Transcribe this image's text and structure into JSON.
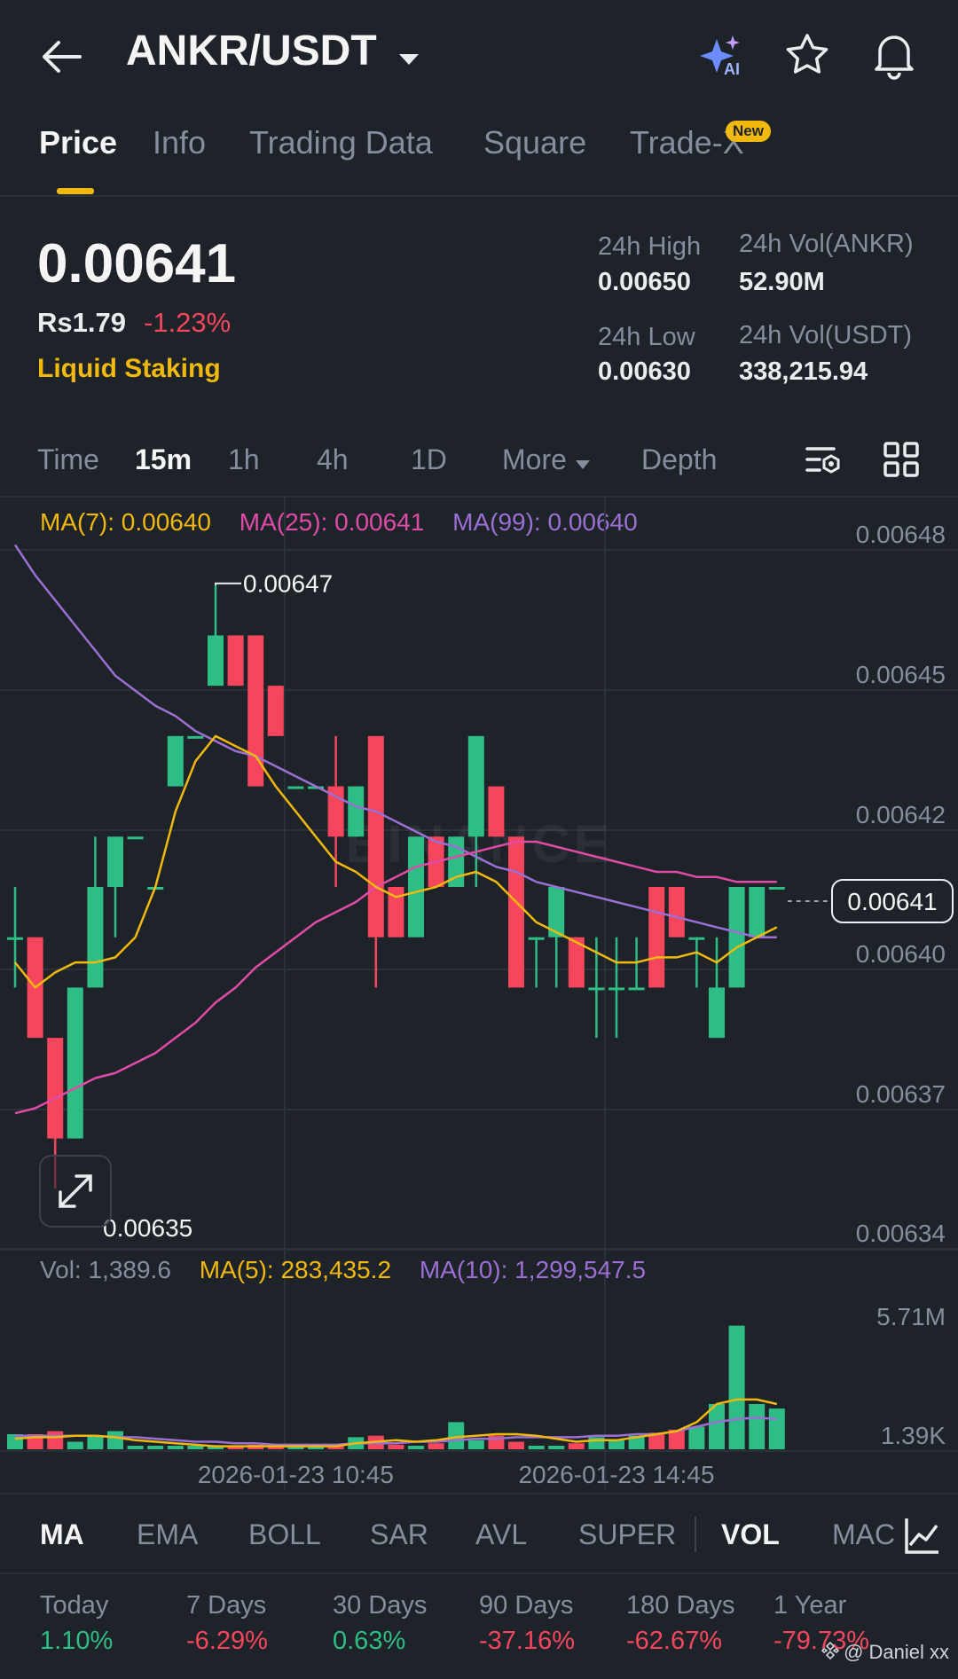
{
  "header": {
    "title": "ANKR/USDT",
    "ai_label": "AI"
  },
  "tabs": [
    {
      "label": "Price"
    },
    {
      "label": "Info"
    },
    {
      "label": "Trading Data"
    },
    {
      "label": "Square"
    },
    {
      "label": "Trade-X"
    }
  ],
  "new_badge": "New",
  "ticker": {
    "price": "0.00641",
    "local_price": "Rs1.79",
    "change": "-1.23%",
    "tag": "Liquid Staking",
    "high_label": "24h High",
    "high": "0.00650",
    "low_label": "24h Low",
    "low": "0.00630",
    "vol_base_label": "24h Vol(ANKR)",
    "vol_base": "52.90M",
    "vol_quote_label": "24h Vol(USDT)",
    "vol_quote": "338,215.94"
  },
  "timebar": {
    "time": "Time",
    "m15": "15m",
    "h1": "1h",
    "h4": "4h",
    "d1": "1D",
    "more": "More",
    "depth": "Depth"
  },
  "ma_legend": {
    "ma7": "MA(7): 0.00640",
    "ma25": "MA(25): 0.00641",
    "ma99": "MA(99): 0.00640"
  },
  "vol_legend": {
    "vol": "Vol: 1,389.6",
    "ma5": "MA(5): 283,435.2",
    "ma10": "MA(10): 1,299,547.5"
  },
  "price_axis": [
    "0.00648",
    "0.00645",
    "0.00642",
    "0.00640",
    "0.00637",
    "0.00634"
  ],
  "vol_axis": [
    "5.71M",
    "1.39K"
  ],
  "current_price_tag": "0.00641",
  "high_marker": "0.00647",
  "low_marker": "0.00635",
  "time_labels": [
    "2026-01-23 10:45",
    "2026-01-23 14:45"
  ],
  "watermark": "BINANCE",
  "indicators": [
    "MA",
    "EMA",
    "BOLL",
    "SAR",
    "AVL",
    "SUPER",
    "VOL",
    "MAC"
  ],
  "performance": [
    {
      "label": "Today",
      "value": "1.10%"
    },
    {
      "label": "7 Days",
      "value": "-6.29%"
    },
    {
      "label": "30 Days",
      "value": "0.63%"
    },
    {
      "label": "90 Days",
      "value": "-37.16%"
    },
    {
      "label": "180 Days",
      "value": "-62.67%"
    },
    {
      "label": "1 Year",
      "value": "-79.73%"
    }
  ],
  "credit": "@ Daniel xx",
  "colors": {
    "up": "#2ebd85",
    "down": "#f6465d",
    "ma7": "#f0b90b",
    "ma25": "#e04ba8",
    "ma99": "#9b6fd4",
    "accent": "#f0b90b"
  },
  "chart_data": {
    "type": "candlestick",
    "interval": "15m",
    "ylim": [
      0.00634,
      0.00648
    ],
    "candles": [
      {
        "o": 0.0064,
        "h": 0.00641,
        "l": 0.00639,
        "c": 0.0064
      },
      {
        "o": 0.0064,
        "h": 0.0064,
        "l": 0.00638,
        "c": 0.00638
      },
      {
        "o": 0.00638,
        "h": 0.00638,
        "l": 0.00635,
        "c": 0.00636
      },
      {
        "o": 0.00636,
        "h": 0.00639,
        "l": 0.00636,
        "c": 0.00639
      },
      {
        "o": 0.00639,
        "h": 0.00642,
        "l": 0.00639,
        "c": 0.00641
      },
      {
        "o": 0.00641,
        "h": 0.00642,
        "l": 0.0064,
        "c": 0.00642
      },
      {
        "o": 0.00642,
        "h": 0.00642,
        "l": 0.00642,
        "c": 0.00642
      },
      {
        "o": 0.00641,
        "h": 0.00641,
        "l": 0.00641,
        "c": 0.00641
      },
      {
        "o": 0.00643,
        "h": 0.00644,
        "l": 0.00643,
        "c": 0.00644
      },
      {
        "o": 0.00644,
        "h": 0.00644,
        "l": 0.00644,
        "c": 0.00644
      },
      {
        "o": 0.00645,
        "h": 0.00647,
        "l": 0.00645,
        "c": 0.00646
      },
      {
        "o": 0.00646,
        "h": 0.00646,
        "l": 0.00645,
        "c": 0.00645
      },
      {
        "o": 0.00646,
        "h": 0.00646,
        "l": 0.00643,
        "c": 0.00643
      },
      {
        "o": 0.00645,
        "h": 0.00645,
        "l": 0.00644,
        "c": 0.00644
      },
      {
        "o": 0.00643,
        "h": 0.00643,
        "l": 0.00643,
        "c": 0.00643
      },
      {
        "o": 0.00643,
        "h": 0.00643,
        "l": 0.00643,
        "c": 0.00643
      },
      {
        "o": 0.00643,
        "h": 0.00644,
        "l": 0.00641,
        "c": 0.00642
      },
      {
        "o": 0.00642,
        "h": 0.00643,
        "l": 0.00642,
        "c": 0.00643
      },
      {
        "o": 0.00644,
        "h": 0.00644,
        "l": 0.00639,
        "c": 0.0064
      },
      {
        "o": 0.00641,
        "h": 0.00641,
        "l": 0.0064,
        "c": 0.0064
      },
      {
        "o": 0.0064,
        "h": 0.00642,
        "l": 0.0064,
        "c": 0.00642
      },
      {
        "o": 0.00642,
        "h": 0.00642,
        "l": 0.00641,
        "c": 0.00641
      },
      {
        "o": 0.00641,
        "h": 0.00642,
        "l": 0.00641,
        "c": 0.00642
      },
      {
        "o": 0.00642,
        "h": 0.00644,
        "l": 0.00641,
        "c": 0.00644
      },
      {
        "o": 0.00643,
        "h": 0.00643,
        "l": 0.00642,
        "c": 0.00642
      },
      {
        "o": 0.00642,
        "h": 0.00642,
        "l": 0.00639,
        "c": 0.00639
      },
      {
        "o": 0.0064,
        "h": 0.0064,
        "l": 0.00639,
        "c": 0.0064
      },
      {
        "o": 0.0064,
        "h": 0.00641,
        "l": 0.00639,
        "c": 0.00641
      },
      {
        "o": 0.0064,
        "h": 0.0064,
        "l": 0.00639,
        "c": 0.00639
      },
      {
        "o": 0.00639,
        "h": 0.0064,
        "l": 0.00638,
        "c": 0.00639
      },
      {
        "o": 0.00639,
        "h": 0.0064,
        "l": 0.00638,
        "c": 0.00639
      },
      {
        "o": 0.00639,
        "h": 0.0064,
        "l": 0.00639,
        "c": 0.00639
      },
      {
        "o": 0.00641,
        "h": 0.00641,
        "l": 0.00639,
        "c": 0.00639
      },
      {
        "o": 0.00641,
        "h": 0.00641,
        "l": 0.0064,
        "c": 0.0064
      },
      {
        "o": 0.0064,
        "h": 0.0064,
        "l": 0.00639,
        "c": 0.0064
      },
      {
        "o": 0.00638,
        "h": 0.0064,
        "l": 0.00638,
        "c": 0.00639
      },
      {
        "o": 0.00639,
        "h": 0.00641,
        "l": 0.00639,
        "c": 0.00641
      },
      {
        "o": 0.0064,
        "h": 0.00641,
        "l": 0.0064,
        "c": 0.00641
      },
      {
        "o": 0.00641,
        "h": 0.00641,
        "l": 0.00641,
        "c": 0.00641
      }
    ],
    "ma7": [
      0.006395,
      0.00639,
      0.006393,
      0.006395,
      0.006395,
      0.006396,
      0.0064,
      0.00641,
      0.006425,
      0.006435,
      0.00644,
      0.006438,
      0.006436,
      0.00643,
      0.006425,
      0.00642,
      0.006415,
      0.006413,
      0.00641,
      0.006408,
      0.006409,
      0.00641,
      0.006412,
      0.006413,
      0.006411,
      0.006407,
      0.006403,
      0.006401,
      0.006399,
      0.006397,
      0.006395,
      0.006395,
      0.006396,
      0.006396,
      0.006397,
      0.006395,
      0.006398,
      0.0064,
      0.006402
    ],
    "ma25": [
      0.006365,
      0.006366,
      0.006368,
      0.00637,
      0.006372,
      0.006373,
      0.006375,
      0.006377,
      0.00638,
      0.006383,
      0.006387,
      0.00639,
      0.006394,
      0.006397,
      0.0064,
      0.006403,
      0.006405,
      0.006407,
      0.00641,
      0.006412,
      0.006414,
      0.006415,
      0.006416,
      0.006417,
      0.006418,
      0.006419,
      0.006419,
      0.006418,
      0.006417,
      0.006416,
      0.006415,
      0.006414,
      0.006413,
      0.006413,
      0.006412,
      0.006412,
      0.006411,
      0.006411,
      0.006411
    ],
    "ma99": [
      0.006478,
      0.006472,
      0.006467,
      0.006462,
      0.006457,
      0.006452,
      0.006449,
      0.006446,
      0.006444,
      0.006441,
      0.006439,
      0.006437,
      0.006436,
      0.006434,
      0.006432,
      0.00643,
      0.006428,
      0.006426,
      0.006425,
      0.006423,
      0.006421,
      0.006419,
      0.006418,
      0.006416,
      0.006414,
      0.006413,
      0.006411,
      0.00641,
      0.006409,
      0.006408,
      0.006407,
      0.006406,
      0.006405,
      0.006404,
      0.006403,
      0.006402,
      0.006401,
      0.0064,
      0.0064
    ],
    "volume": [
      0.1,
      0.1,
      0.12,
      0.05,
      0.09,
      0.12,
      0.01,
      0.02,
      0.01,
      0.01,
      0.02,
      0.02,
      0.03,
      0.03,
      0.02,
      0.01,
      0.01,
      0.08,
      0.09,
      0.03,
      0.02,
      0.04,
      0.18,
      0.06,
      0.09,
      0.05,
      0.02,
      0.02,
      0.04,
      0.08,
      0.06,
      0.09,
      0.11,
      0.13,
      0.15,
      0.3,
      0.82,
      0.3,
      0.27
    ],
    "vol_ma5": [
      0.07,
      0.08,
      0.08,
      0.09,
      0.09,
      0.08,
      0.06,
      0.05,
      0.04,
      0.03,
      0.02,
      0.02,
      0.02,
      0.02,
      0.02,
      0.02,
      0.02,
      0.04,
      0.05,
      0.06,
      0.05,
      0.06,
      0.08,
      0.09,
      0.1,
      0.1,
      0.09,
      0.07,
      0.05,
      0.06,
      0.06,
      0.08,
      0.1,
      0.12,
      0.18,
      0.3,
      0.33,
      0.33,
      0.3
    ],
    "vol_ma10": [
      0.09,
      0.09,
      0.09,
      0.09,
      0.09,
      0.08,
      0.08,
      0.07,
      0.06,
      0.05,
      0.05,
      0.04,
      0.04,
      0.03,
      0.03,
      0.03,
      0.03,
      0.04,
      0.04,
      0.04,
      0.05,
      0.05,
      0.06,
      0.07,
      0.07,
      0.08,
      0.08,
      0.08,
      0.08,
      0.09,
      0.09,
      0.1,
      0.1,
      0.12,
      0.15,
      0.18,
      0.2,
      0.21,
      0.2
    ],
    "xlabels": [
      "2026-01-23 10:45",
      "2026-01-23 14:45"
    ],
    "xlabel_positions": [
      14,
      30
    ]
  }
}
